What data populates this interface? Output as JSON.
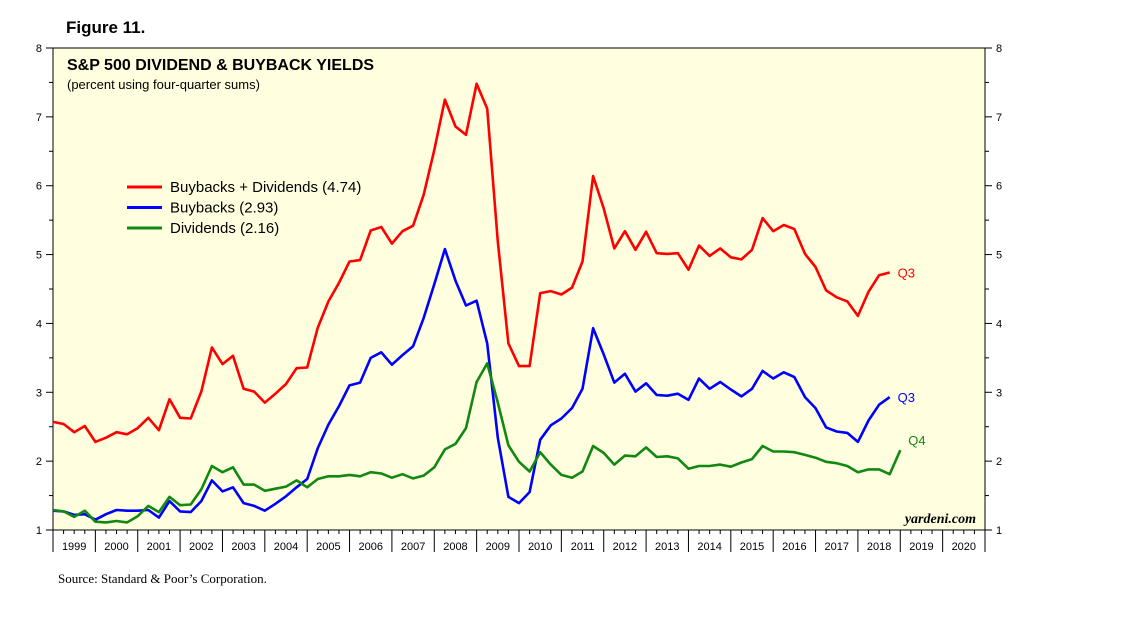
{
  "figure_label": "Figure 11.",
  "source": "Source: Standard & Poor’s Corporation.",
  "watermark": "yardeni.com",
  "colors": {
    "background": "#ffffe0",
    "red": "#ff0000",
    "blue": "#0000ff",
    "green": "#118811"
  },
  "chart_data": {
    "type": "line",
    "title": "S&P 500 DIVIDEND & BUYBACK YIELDS",
    "subtitle": "(percent using four-quarter sums)",
    "ylim": [
      1,
      8
    ],
    "xlim": [
      1999,
      2021
    ],
    "y_ticks": [
      "1",
      "2",
      "3",
      "4",
      "5",
      "6",
      "7",
      "8"
    ],
    "x_tick_labels": [
      "1999",
      "2000",
      "2001",
      "2002",
      "2003",
      "2004",
      "2005",
      "2006",
      "2007",
      "2008",
      "2009",
      "2010",
      "2011",
      "2012",
      "2013",
      "2014",
      "2015",
      "2016",
      "2017",
      "2018",
      "2019",
      "2020"
    ],
    "legend": [
      "Buybacks + Dividends (4.74)",
      "Buybacks (2.93)",
      "Dividends (2.16)"
    ],
    "series": [
      {
        "name": "Buybacks + Dividends",
        "color": "red",
        "end_label": "Q3",
        "x": [
          1999.0,
          1999.25,
          1999.5,
          1999.75,
          2000.0,
          2000.25,
          2000.5,
          2000.75,
          2001.0,
          2001.25,
          2001.5,
          2001.75,
          2002.0,
          2002.25,
          2002.5,
          2002.75,
          2003.0,
          2003.25,
          2003.5,
          2003.75,
          2004.0,
          2004.25,
          2004.5,
          2004.75,
          2005.0,
          2005.25,
          2005.5,
          2005.75,
          2006.0,
          2006.25,
          2006.5,
          2006.75,
          2007.0,
          2007.25,
          2007.5,
          2007.75,
          2008.0,
          2008.25,
          2008.5,
          2008.75,
          2009.0,
          2009.25,
          2009.5,
          2009.75,
          2010.0,
          2010.25,
          2010.5,
          2010.75,
          2011.0,
          2011.25,
          2011.5,
          2011.75,
          2012.0,
          2012.25,
          2012.5,
          2012.75,
          2013.0,
          2013.25,
          2013.5,
          2013.75,
          2014.0,
          2014.25,
          2014.5,
          2014.75,
          2015.0,
          2015.25,
          2015.5,
          2015.75,
          2016.0,
          2016.25,
          2016.5,
          2016.75,
          2017.0,
          2017.25,
          2017.5,
          2017.75,
          2018.0,
          2018.25,
          2018.5,
          2018.75
        ],
        "values": [
          2.57,
          2.54,
          2.42,
          2.51,
          2.28,
          2.34,
          2.42,
          2.39,
          2.48,
          2.63,
          2.45,
          2.9,
          2.63,
          2.62,
          3.01,
          3.65,
          3.41,
          3.53,
          3.05,
          3.01,
          2.85,
          2.98,
          3.12,
          3.35,
          3.36,
          3.94,
          4.32,
          4.59,
          4.9,
          4.92,
          5.35,
          5.4,
          5.16,
          5.34,
          5.42,
          5.87,
          6.52,
          7.25,
          6.86,
          6.74,
          7.48,
          7.12,
          5.19,
          3.71,
          3.38,
          3.38,
          4.44,
          4.47,
          4.42,
          4.52,
          4.9,
          6.14,
          5.67,
          5.09,
          5.34,
          5.07,
          5.33,
          5.02,
          5.01,
          5.02,
          4.78,
          5.13,
          4.98,
          5.09,
          4.96,
          4.93,
          5.07,
          5.53,
          5.34,
          5.43,
          5.37,
          5.01,
          4.82,
          4.48,
          4.38,
          4.32,
          4.11,
          4.46,
          4.7,
          4.74
        ]
      },
      {
        "name": "Buybacks",
        "color": "blue",
        "end_label": "Q3",
        "x": [
          1999.0,
          1999.25,
          1999.5,
          1999.75,
          2000.0,
          2000.25,
          2000.5,
          2000.75,
          2001.0,
          2001.25,
          2001.5,
          2001.75,
          2002.0,
          2002.25,
          2002.5,
          2002.75,
          2003.0,
          2003.25,
          2003.5,
          2003.75,
          2004.0,
          2004.25,
          2004.5,
          2004.75,
          2005.0,
          2005.25,
          2005.5,
          2005.75,
          2006.0,
          2006.25,
          2006.5,
          2006.75,
          2007.0,
          2007.25,
          2007.5,
          2007.75,
          2008.0,
          2008.25,
          2008.5,
          2008.75,
          2009.0,
          2009.25,
          2009.5,
          2009.75,
          2010.0,
          2010.25,
          2010.5,
          2010.75,
          2011.0,
          2011.25,
          2011.5,
          2011.75,
          2012.0,
          2012.25,
          2012.5,
          2012.75,
          2013.0,
          2013.25,
          2013.5,
          2013.75,
          2014.0,
          2014.25,
          2014.5,
          2014.75,
          2015.0,
          2015.25,
          2015.5,
          2015.75,
          2016.0,
          2016.25,
          2016.5,
          2016.75,
          2017.0,
          2017.25,
          2017.5,
          2017.75,
          2018.0,
          2018.25,
          2018.5,
          2018.75
        ],
        "values": [
          1.28,
          1.27,
          1.22,
          1.23,
          1.15,
          1.23,
          1.29,
          1.28,
          1.28,
          1.29,
          1.18,
          1.42,
          1.27,
          1.26,
          1.42,
          1.72,
          1.56,
          1.62,
          1.39,
          1.35,
          1.28,
          1.38,
          1.49,
          1.62,
          1.74,
          2.19,
          2.53,
          2.8,
          3.1,
          3.14,
          3.5,
          3.58,
          3.4,
          3.54,
          3.67,
          4.08,
          4.57,
          5.08,
          4.62,
          4.26,
          4.33,
          3.71,
          2.34,
          1.48,
          1.39,
          1.55,
          2.31,
          2.52,
          2.62,
          2.77,
          3.05,
          3.93,
          3.55,
          3.14,
          3.27,
          3.01,
          3.13,
          2.96,
          2.95,
          2.98,
          2.89,
          3.2,
          3.05,
          3.15,
          3.04,
          2.94,
          3.05,
          3.31,
          3.2,
          3.29,
          3.22,
          2.93,
          2.77,
          2.49,
          2.43,
          2.41,
          2.28,
          2.59,
          2.82,
          2.93
        ]
      },
      {
        "name": "Dividends",
        "color": "green",
        "end_label": "Q4",
        "x": [
          1999.0,
          1999.25,
          1999.5,
          1999.75,
          2000.0,
          2000.25,
          2000.5,
          2000.75,
          2001.0,
          2001.25,
          2001.5,
          2001.75,
          2002.0,
          2002.25,
          2002.5,
          2002.75,
          2003.0,
          2003.25,
          2003.5,
          2003.75,
          2004.0,
          2004.25,
          2004.5,
          2004.75,
          2005.0,
          2005.25,
          2005.5,
          2005.75,
          2006.0,
          2006.25,
          2006.5,
          2006.75,
          2007.0,
          2007.25,
          2007.5,
          2007.75,
          2008.0,
          2008.25,
          2008.5,
          2008.75,
          2009.0,
          2009.25,
          2009.5,
          2009.75,
          2010.0,
          2010.25,
          2010.5,
          2010.75,
          2011.0,
          2011.25,
          2011.5,
          2011.75,
          2012.0,
          2012.25,
          2012.5,
          2012.75,
          2013.0,
          2013.25,
          2013.5,
          2013.75,
          2014.0,
          2014.25,
          2014.5,
          2014.75,
          2015.0,
          2015.25,
          2015.5,
          2015.75,
          2016.0,
          2016.25,
          2016.5,
          2016.75,
          2017.0,
          2017.25,
          2017.5,
          2017.75,
          2018.0,
          2018.25,
          2018.5,
          2018.75,
          2019.0
        ],
        "values": [
          1.29,
          1.27,
          1.19,
          1.28,
          1.12,
          1.11,
          1.13,
          1.11,
          1.2,
          1.35,
          1.26,
          1.48,
          1.36,
          1.37,
          1.59,
          1.93,
          1.84,
          1.91,
          1.66,
          1.66,
          1.57,
          1.6,
          1.63,
          1.72,
          1.62,
          1.74,
          1.78,
          1.78,
          1.8,
          1.78,
          1.84,
          1.82,
          1.76,
          1.81,
          1.75,
          1.79,
          1.91,
          2.17,
          2.25,
          2.48,
          3.15,
          3.42,
          2.85,
          2.23,
          1.99,
          1.85,
          2.13,
          1.95,
          1.8,
          1.76,
          1.85,
          2.22,
          2.12,
          1.95,
          2.08,
          2.07,
          2.2,
          2.06,
          2.07,
          2.04,
          1.89,
          1.93,
          1.93,
          1.95,
          1.92,
          1.98,
          2.03,
          2.22,
          2.14,
          2.14,
          2.13,
          2.09,
          2.05,
          1.99,
          1.97,
          1.93,
          1.84,
          1.88,
          1.88,
          1.81,
          2.16
        ]
      }
    ]
  }
}
